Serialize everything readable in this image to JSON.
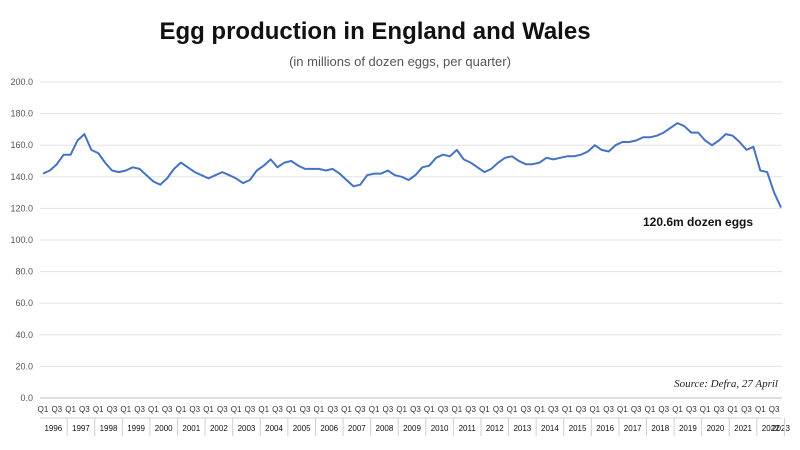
{
  "chart_data": {
    "type": "line",
    "title": "Egg production in England and Wales",
    "subtitle": "(in millions of dozen eggs, per quarter)",
    "ylim": [
      0,
      200
    ],
    "yticks": [
      "0.0",
      "20.0",
      "40.0",
      "60.0",
      "80.0",
      "100.0",
      "120.0",
      "140.0",
      "160.0",
      "180.0",
      "200.0"
    ],
    "grid": true,
    "line_color": "#4472C4",
    "quarter_labels": [
      "Q1",
      "Q3"
    ],
    "years": [
      "1996",
      "1997",
      "1998",
      "1999",
      "2000",
      "2001",
      "2002",
      "2003",
      "2004",
      "2005",
      "2006",
      "2007",
      "2008",
      "2009",
      "2010",
      "2011",
      "2012",
      "2013",
      "2014",
      "2015",
      "2016",
      "2017",
      "2018",
      "2019",
      "2020",
      "2021",
      "2022",
      "2023"
    ],
    "series": [
      {
        "values": [
          142,
          144,
          148,
          154,
          154,
          163,
          167,
          157,
          155,
          149,
          144,
          143,
          144,
          146,
          145,
          141,
          137,
          135,
          139,
          145,
          149,
          146,
          143,
          141,
          139,
          141,
          143,
          141,
          139,
          136,
          138,
          144,
          147,
          151,
          146,
          149,
          150,
          147,
          145,
          145,
          145,
          144,
          145,
          142,
          138,
          134,
          135,
          141,
          142,
          142,
          144,
          141,
          140,
          138,
          141,
          146,
          147,
          152,
          154,
          153,
          157,
          151,
          149,
          146,
          143,
          145,
          149,
          152,
          153,
          150,
          148,
          148,
          149,
          152,
          151,
          152,
          153,
          153,
          154,
          156,
          160,
          157,
          156,
          160,
          162,
          162,
          163,
          165,
          165,
          166,
          168,
          171,
          174,
          172,
          168,
          168,
          163,
          160,
          163,
          167,
          166,
          162,
          157,
          159,
          144,
          143,
          130,
          120.6
        ]
      }
    ],
    "annotations": [
      {
        "text": "120.6m dozen eggs"
      }
    ],
    "source": "Source: Defra, 27 April"
  }
}
